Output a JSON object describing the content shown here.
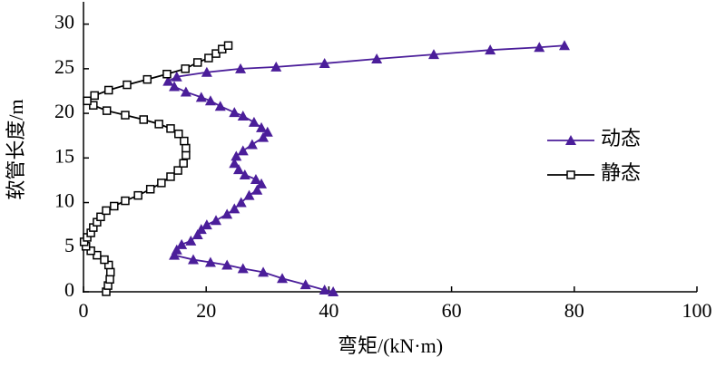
{
  "chart_data": {
    "type": "line",
    "x_label": "弯矩/(kN·m)",
    "y_label": "软管长度/m",
    "xlim": [
      0,
      100
    ],
    "xticks": [
      0,
      20,
      40,
      60,
      80,
      100
    ],
    "ylim": [
      0,
      32.5
    ],
    "yticks": [
      0,
      5,
      10,
      15,
      20,
      25,
      30
    ],
    "legend": "right",
    "series": [
      {
        "name": "动态",
        "color": "#4b1e9a",
        "marker": "triangle",
        "x": [
          40.7,
          39.3,
          36.2,
          32.4,
          29.3,
          26,
          23.4,
          20.7,
          17.9,
          14.8,
          15.2,
          16,
          17.5,
          18.6,
          19.2,
          20.1,
          21.6,
          23.4,
          24.6,
          25.7,
          27,
          28.3,
          29,
          28.1,
          26.3,
          25.3,
          24.6,
          24.9,
          26,
          27.5,
          29.3,
          30,
          29,
          27.8,
          26,
          24.6,
          22.3,
          20.7,
          19.2,
          16.7,
          14.8,
          13.8,
          15.2,
          20.1,
          25.6,
          31.4,
          39.3,
          47.8,
          57.1,
          66.3,
          74.3,
          78.4
        ],
        "y": [
          0,
          0.2,
          0.8,
          1.5,
          2.2,
          2.6,
          3.0,
          3.3,
          3.6,
          4.1,
          4.7,
          5.3,
          5.7,
          6.4,
          7.0,
          7.5,
          8.0,
          8.7,
          9.3,
          10,
          10.8,
          11.4,
          12.1,
          12.6,
          13.1,
          13.7,
          14.4,
          15.2,
          15.8,
          16.5,
          17.3,
          17.9,
          18.4,
          19.0,
          19.7,
          20.1,
          20.8,
          21.4,
          21.8,
          22.4,
          23.0,
          23.6,
          24.1,
          24.6,
          25.0,
          25.2,
          25.6,
          26.1,
          26.6,
          27.1,
          27.4,
          27.6
        ]
      },
      {
        "name": "静态",
        "color": "#000000",
        "marker": "square",
        "x": [
          3.7,
          4,
          4.3,
          4.4,
          4.1,
          3.4,
          2.2,
          1.2,
          0.4,
          0.1,
          0.6,
          1.2,
          1.6,
          2.2,
          2.8,
          3.7,
          5,
          6.8,
          8.9,
          10.9,
          12.7,
          14.2,
          15.4,
          16.3,
          16.7,
          16.7,
          16.4,
          15.5,
          14.2,
          12.3,
          9.8,
          6.8,
          3.8,
          1.6,
          0.6,
          1.8,
          4.1,
          7.1,
          10.4,
          13.6,
          16.6,
          18.6,
          20.4,
          21.6,
          22.6,
          23.6
        ],
        "y": [
          0,
          0.7,
          1.4,
          2.2,
          3.0,
          3.6,
          4.1,
          4.6,
          5.1,
          5.6,
          6.1,
          6.6,
          7.2,
          7.8,
          8.4,
          9.1,
          9.6,
          10.2,
          10.8,
          11.5,
          12.2,
          12.9,
          13.6,
          14.4,
          15.3,
          16.1,
          16.9,
          17.7,
          18.3,
          18.8,
          19.3,
          19.8,
          20.3,
          20.9,
          21.4,
          22.0,
          22.6,
          23.2,
          23.8,
          24.4,
          25.0,
          25.7,
          26.2,
          26.7,
          27.2,
          27.6
        ]
      }
    ]
  }
}
